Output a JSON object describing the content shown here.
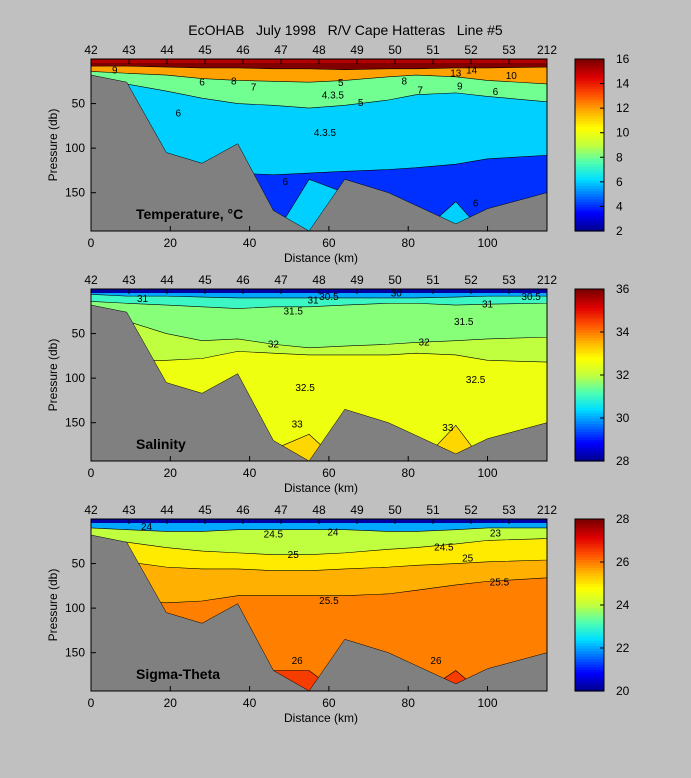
{
  "title": "EcOHAB   July 1998   R/V Cape Hatteras   Line #5",
  "colors": {
    "background": "#c0c0c0",
    "bottom_topography": "#808080",
    "colormap": [
      "#00008f",
      "#0000ff",
      "#0070ff",
      "#00e0ff",
      "#50ffb0",
      "#c0ff40",
      "#ffff00",
      "#ffb000",
      "#ff5000",
      "#e00000",
      "#800000"
    ]
  },
  "chart_data": [
    {
      "type": "heatmap",
      "panel_label": "Temperature, ",
      "panel_label_unit": "°C",
      "xlabel": "Distance (km)",
      "ylabel": "Pressure (db)",
      "xlim": [
        0,
        115
      ],
      "ylim": [
        193,
        0
      ],
      "x_ticks": [
        "0",
        "20",
        "40",
        "60",
        "80",
        "100"
      ],
      "y_ticks": [
        "50",
        "100",
        "150"
      ],
      "station_labels": [
        "42",
        "43",
        "44",
        "45",
        "46",
        "47",
        "48",
        "49",
        "50",
        "51",
        "52",
        "53",
        "212"
      ],
      "colorbar": {
        "range": [
          2,
          16
        ],
        "ticks": [
          "2",
          "4",
          "6",
          "8",
          "10",
          "12",
          "14",
          "16"
        ]
      },
      "bands": [
        {
          "value": 16,
          "y": [
            3,
            3,
            3,
            3,
            3,
            3,
            3,
            3,
            3,
            3,
            3,
            3,
            3
          ]
        },
        {
          "value": 12,
          "y": [
            8,
            8,
            9,
            10,
            10,
            11,
            11,
            12,
            11,
            11,
            10,
            10,
            9
          ]
        },
        {
          "value": 8,
          "y": [
            14,
            16,
            18,
            22,
            24,
            25,
            26,
            24,
            20,
            18,
            20,
            24,
            28
          ]
        },
        {
          "value": 6,
          "y": [
            22,
            28,
            36,
            44,
            50,
            52,
            55,
            52,
            46,
            40,
            38,
            42,
            48
          ]
        },
        {
          "value": 4,
          "y": [
            40,
            75,
            110,
            125,
            128,
            130,
            128,
            126,
            124,
            122,
            118,
            112,
            108
          ]
        }
      ],
      "deep_layer": {
        "value": 6,
        "top": [
          200,
          200,
          200,
          200,
          200,
          200,
          135,
          150,
          150,
          200,
          160,
          200,
          200
        ]
      },
      "contour_labels": [
        {
          "text": "9",
          "x": 6,
          "y": 12
        },
        {
          "text": "6",
          "x": 28,
          "y": 25
        },
        {
          "text": "8",
          "x": 36,
          "y": 24
        },
        {
          "text": "7",
          "x": 41,
          "y": 31
        },
        {
          "text": "6",
          "x": 22,
          "y": 60
        },
        {
          "text": "5",
          "x": 63,
          "y": 26
        },
        {
          "text": "4.3.5",
          "x": 61,
          "y": 40
        },
        {
          "text": "5",
          "x": 68,
          "y": 48
        },
        {
          "text": "8",
          "x": 79,
          "y": 24
        },
        {
          "text": "7",
          "x": 83,
          "y": 34
        },
        {
          "text": "9",
          "x": 93,
          "y": 30
        },
        {
          "text": "13",
          "x": 92,
          "y": 15
        },
        {
          "text": "14",
          "x": 96,
          "y": 12
        },
        {
          "text": "10",
          "x": 106,
          "y": 18
        },
        {
          "text": "6",
          "x": 102,
          "y": 36
        },
        {
          "text": "4.3.5",
          "x": 59,
          "y": 82
        },
        {
          "text": "6",
          "x": 49,
          "y": 137
        },
        {
          "text": "6",
          "x": 97,
          "y": 161
        }
      ]
    },
    {
      "type": "heatmap",
      "panel_label": "Salinity",
      "xlabel": "Distance (km)",
      "ylabel": "Pressure (db)",
      "xlim": [
        0,
        115
      ],
      "ylim": [
        193,
        0
      ],
      "x_ticks": [
        "0",
        "20",
        "40",
        "60",
        "80",
        "100"
      ],
      "y_ticks": [
        "50",
        "100",
        "150"
      ],
      "station_labels": [
        "42",
        "43",
        "44",
        "45",
        "46",
        "47",
        "48",
        "49",
        "50",
        "51",
        "52",
        "53",
        "212"
      ],
      "colorbar": {
        "range": [
          28,
          36
        ],
        "ticks": [
          "28",
          "30",
          "32",
          "34",
          "36"
        ]
      },
      "bands": [
        {
          "value": 30,
          "y": [
            3,
            3,
            3,
            3,
            3,
            3,
            3,
            3,
            3,
            3,
            3,
            3,
            3
          ]
        },
        {
          "value": 31,
          "y": [
            6,
            8,
            8,
            9,
            10,
            10,
            10,
            10,
            10,
            10,
            9,
            8,
            8
          ]
        },
        {
          "value": 31.6,
          "y": [
            14,
            16,
            18,
            20,
            22,
            20,
            20,
            18,
            16,
            16,
            18,
            17,
            16
          ]
        },
        {
          "value": 32,
          "y": [
            30,
            36,
            50,
            58,
            56,
            62,
            66,
            64,
            62,
            60,
            58,
            56,
            54
          ]
        },
        {
          "value": 32.6,
          "y": [
            80,
            80,
            80,
            78,
            70,
            72,
            74,
            74,
            74,
            72,
            74,
            80,
            82
          ]
        },
        {
          "value": 33.2,
          "y": [
            200,
            200,
            200,
            200,
            200,
            180,
            163,
            200,
            200,
            200,
            153,
            200,
            200
          ]
        }
      ],
      "contour_labels": [
        {
          "text": "31",
          "x": 56,
          "y": 12
        },
        {
          "text": "30.5",
          "x": 60,
          "y": 8
        },
        {
          "text": "30",
          "x": 77,
          "y": 4
        },
        {
          "text": "31",
          "x": 100,
          "y": 16
        },
        {
          "text": "30.5",
          "x": 111,
          "y": 8
        },
        {
          "text": "31.5",
          "x": 51,
          "y": 24
        },
        {
          "text": "31.5",
          "x": 94,
          "y": 36
        },
        {
          "text": "32",
          "x": 46,
          "y": 61
        },
        {
          "text": "32",
          "x": 84,
          "y": 59
        },
        {
          "text": "32.5",
          "x": 54,
          "y": 110
        },
        {
          "text": "32.5",
          "x": 97,
          "y": 101
        },
        {
          "text": "33",
          "x": 52,
          "y": 151
        },
        {
          "text": "33",
          "x": 90,
          "y": 155
        },
        {
          "text": "31",
          "x": 13,
          "y": 10
        }
      ]
    },
    {
      "type": "heatmap",
      "panel_label": "Sigma-Theta",
      "xlabel": "Distance (km)",
      "ylabel": "Pressure (db)",
      "xlim": [
        0,
        115
      ],
      "ylim": [
        193,
        0
      ],
      "x_ticks": [
        "0",
        "20",
        "40",
        "60",
        "80",
        "100"
      ],
      "y_ticks": [
        "50",
        "100",
        "150"
      ],
      "station_labels": [
        "42",
        "43",
        "44",
        "45",
        "46",
        "47",
        "48",
        "49",
        "50",
        "51",
        "52",
        "53",
        "212"
      ],
      "colorbar": {
        "range": [
          20,
          28
        ],
        "ticks": [
          "20",
          "22",
          "24",
          "26",
          "28"
        ]
      },
      "bands": [
        {
          "value": 22,
          "y": [
            3,
            3,
            3,
            3,
            3,
            3,
            3,
            3,
            3,
            3,
            3,
            3,
            3
          ]
        },
        {
          "value": 24,
          "y": [
            10,
            12,
            14,
            14,
            12,
            12,
            12,
            12,
            14,
            14,
            12,
            10,
            10
          ]
        },
        {
          "value": 25,
          "y": [
            22,
            26,
            32,
            36,
            38,
            40,
            40,
            38,
            34,
            32,
            28,
            24,
            22
          ]
        },
        {
          "value": 25.6,
          "y": [
            42,
            48,
            54,
            56,
            56,
            58,
            58,
            56,
            54,
            52,
            50,
            48,
            46
          ]
        },
        {
          "value": 26,
          "y": [
            96,
            92,
            94,
            92,
            86,
            86,
            86,
            86,
            84,
            80,
            74,
            70,
            66
          ]
        },
        {
          "value": 26.6,
          "y": [
            200,
            200,
            200,
            200,
            200,
            170,
            170,
            200,
            200,
            200,
            170,
            200,
            200
          ]
        }
      ],
      "contour_labels": [
        {
          "text": "24.5",
          "x": 46,
          "y": 16
        },
        {
          "text": "24.5",
          "x": 89,
          "y": 31
        },
        {
          "text": "25",
          "x": 51,
          "y": 39
        },
        {
          "text": "25",
          "x": 95,
          "y": 43
        },
        {
          "text": "25.5",
          "x": 103,
          "y": 70
        },
        {
          "text": "25.5",
          "x": 60,
          "y": 91
        },
        {
          "text": "26",
          "x": 52,
          "y": 158
        },
        {
          "text": "26",
          "x": 87,
          "y": 158
        },
        {
          "text": "24",
          "x": 14,
          "y": 8
        },
        {
          "text": "24",
          "x": 61,
          "y": 14
        },
        {
          "text": "23",
          "x": 102,
          "y": 15
        }
      ]
    }
  ]
}
